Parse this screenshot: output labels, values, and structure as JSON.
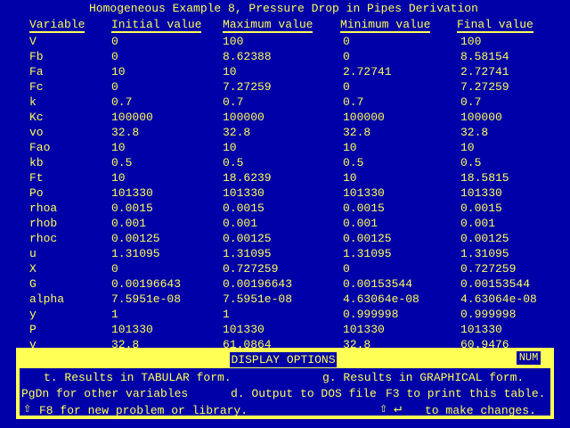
{
  "title": "Homogeneous Example 8, Pressure Drop in Pipes Derivation",
  "columns": [
    "Variable",
    "Initial value",
    "Maximum value",
    "Minimum value",
    "Final value"
  ],
  "rows": [
    [
      "V",
      "0",
      "100",
      "0",
      "100"
    ],
    [
      "Fb",
      "0",
      "8.62388",
      "0",
      "8.58154"
    ],
    [
      "Fa",
      "10",
      "10",
      "2.72741",
      "2.72741"
    ],
    [
      "Fc",
      "0",
      "7.27259",
      "0",
      "7.27259"
    ],
    [
      "k",
      "0.7",
      "0.7",
      "0.7",
      "0.7"
    ],
    [
      "Kc",
      "100000",
      "100000",
      "100000",
      "100000"
    ],
    [
      "vo",
      "32.8",
      "32.8",
      "32.8",
      "32.8"
    ],
    [
      "Fao",
      "10",
      "10",
      "10",
      "10"
    ],
    [
      "kb",
      "0.5",
      "0.5",
      "0.5",
      "0.5"
    ],
    [
      "Ft",
      "10",
      "18.6239",
      "10",
      "18.5815"
    ],
    [
      "Po",
      "101330",
      "101330",
      "101330",
      "101330"
    ],
    [
      "rhoa",
      "0.0015",
      "0.0015",
      "0.0015",
      "0.0015"
    ],
    [
      "rhob",
      "0.001",
      "0.001",
      "0.001",
      "0.001"
    ],
    [
      "rhoc",
      "0.00125",
      "0.00125",
      "0.00125",
      "0.00125"
    ],
    [
      "u",
      "1.31095",
      "1.31095",
      "1.31095",
      "1.31095"
    ],
    [
      "X",
      "0",
      "0.727259",
      "0",
      "0.727259"
    ],
    [
      "G",
      "0.00196643",
      "0.00196643",
      "0.00153544",
      "0.00153544"
    ],
    [
      "alpha",
      "7.5951e-08",
      "7.5951e-08",
      "4.63064e-08",
      "4.63064e-08"
    ],
    [
      "y",
      "1",
      "1",
      "0.999998",
      "0.999998"
    ],
    [
      "P",
      "101330",
      "101330",
      "101330",
      "101330"
    ],
    [
      "v",
      "32.8",
      "61.0864",
      "32.8",
      "60.9476"
    ]
  ],
  "options": {
    "header": "DISPLAY OPTIONS",
    "num_indicator": "NUM",
    "tabular": "t. Results in TABULAR form.",
    "graphical": "g. Results in GRAPHICAL form.",
    "pgdn": "PgDn for other variables",
    "dos_output": "d. Output to DOS file",
    "print": "F3 to print this table.",
    "new_problem": "F8 for new problem or library.",
    "make_changes": "to make changes.",
    "shift_icon": "shift-arrow",
    "enter_icon": "enter-arrow"
  },
  "colors": {
    "background": "#0000a8",
    "foreground": "#ffff55"
  }
}
